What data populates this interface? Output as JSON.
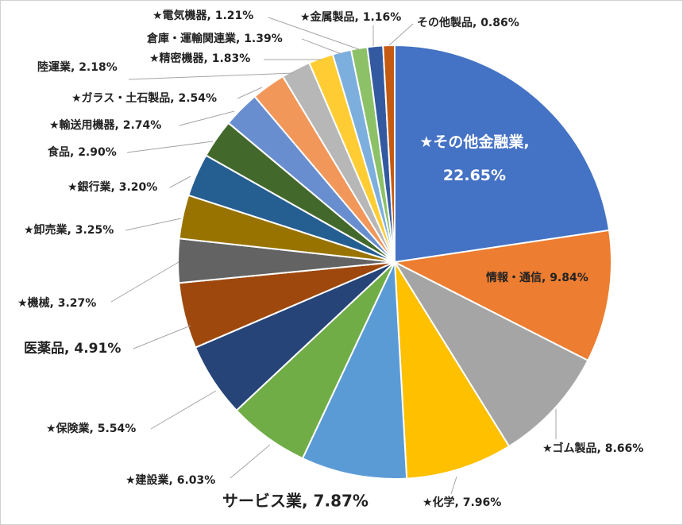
{
  "chart_data": {
    "type": "pie",
    "values": [
      22.65,
      9.84,
      8.66,
      7.96,
      7.87,
      6.03,
      5.54,
      4.91,
      3.27,
      3.25,
      3.2,
      2.9,
      2.74,
      2.54,
      2.18,
      1.83,
      1.39,
      1.21,
      1.16,
      0.86
    ],
    "value_labels": [
      "★その他金融業, 22.65%",
      "情報・通信, 9.84%",
      "★ゴム製品, 8.66%",
      "★化学, 7.96%",
      "サービス業, 7.87%",
      "★建設業, 6.03%",
      "★保険業, 5.54%",
      "医薬品, 4.91%",
      "★機械, 3.27%",
      "★卸売業, 3.25%",
      "★銀行業, 3.20%",
      "食品, 2.90%",
      "★輸送用機器, 2.74%",
      "★ガラス・土石製品, 2.54%",
      "陸運業, 2.18%",
      "★精密機器, 1.83%",
      "倉庫・運輸関連業, 1.39%",
      "★電気機器, 1.21%",
      "★金属製品, 1.16%",
      "その他製品, 0.86%"
    ],
    "colors": [
      "#4472c4",
      "#ed7d31",
      "#a5a5a5",
      "#ffc000",
      "#5b9bd5",
      "#70ad47",
      "#264478",
      "#9e480e",
      "#636363",
      "#997300",
      "#255e91",
      "#43682b",
      "#698ed0",
      "#f1975a",
      "#b7b7b7",
      "#ffcd33",
      "#7cafdd",
      "#8cc168",
      "#335aa1",
      "#c55a11"
    ]
  }
}
